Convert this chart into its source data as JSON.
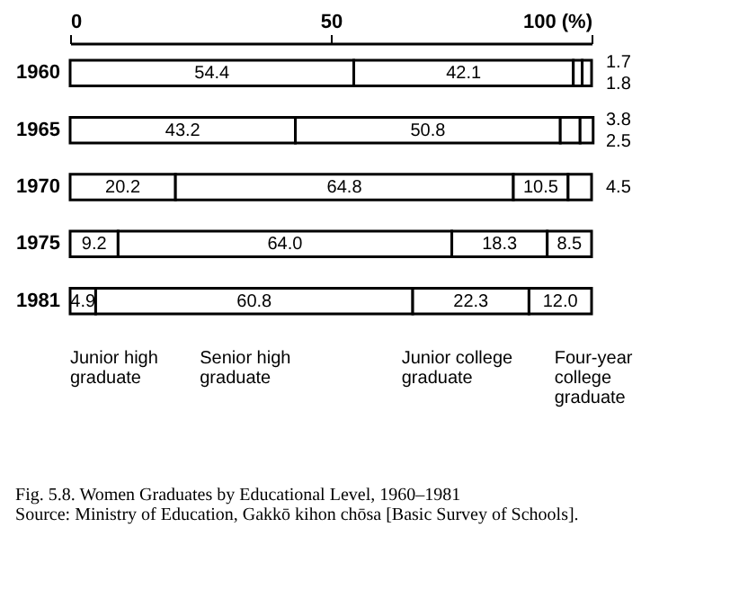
{
  "chart_data": {
    "type": "bar",
    "orientation": "horizontal",
    "stacked": true,
    "title": "Fig. 5.8.  Women Graduates by Educational Level, 1960–1981",
    "annotations": [
      "Source: Ministry of Education, Gakkō kihon chōsa [Basic Survey of Schools]."
    ],
    "categories": [
      "1960",
      "1965",
      "1970",
      "1975",
      "1981"
    ],
    "xlim": [
      0,
      100
    ],
    "xticks": [
      0,
      50,
      {
        "value": 100,
        "label": "100 (%)"
      }
    ],
    "series": [
      {
        "name": "Junior high graduate",
        "color": "#ffffff",
        "values": [
          54.4,
          43.2,
          20.2,
          9.2,
          4.9
        ],
        "value_labels": [
          "54.4",
          "43.2",
          "20.2",
          "9.2",
          "4.9"
        ]
      },
      {
        "name": "Senior high graduate",
        "color": "#ffffff",
        "values": [
          42.1,
          50.8,
          64.8,
          64.0,
          60.8
        ],
        "value_labels": [
          "42.1",
          "50.8",
          "64.8",
          "64.0",
          "60.8"
        ]
      },
      {
        "name": "Junior college graduate",
        "color": "#ffffff",
        "values": [
          1.7,
          3.8,
          10.5,
          18.3,
          22.3
        ],
        "value_labels": [
          "1.7",
          "3.8",
          "10.5",
          "18.3",
          "22.3"
        ]
      },
      {
        "name": "Four-year college graduate",
        "color": "#ffffff",
        "values": [
          1.8,
          2.5,
          4.5,
          8.5,
          12.0
        ],
        "value_labels": [
          "1.8",
          "2.5",
          "4.5",
          "8.5",
          "12.0"
        ]
      }
    ]
  }
}
